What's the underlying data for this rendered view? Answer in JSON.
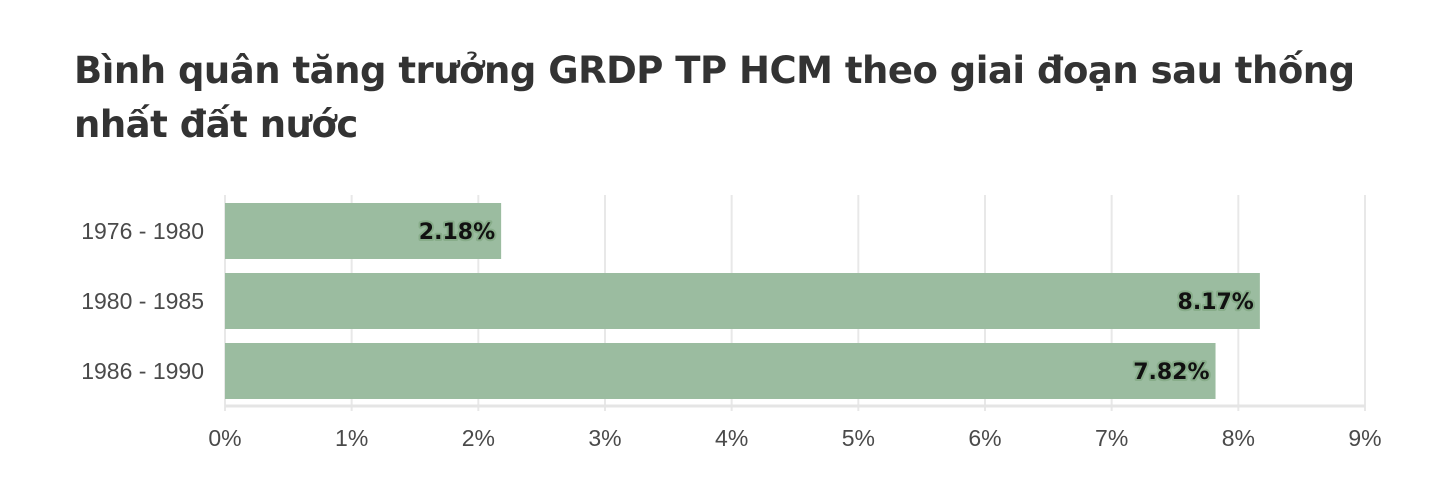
{
  "title": "Bình quân tăng trưởng GRDP TP HCM theo giai đoạn sau thống nhất đất nước",
  "colors": {
    "bar": "#9bbca0",
    "grid": "#e8e8e8",
    "axis": "#e5e5e5",
    "title": "#333333",
    "label": "#4a4a4a"
  },
  "chart_data": {
    "type": "bar",
    "orientation": "horizontal",
    "title": "Bình quân tăng trưởng GRDP TP HCM theo giai đoạn sau thống nhất đất nước",
    "categories": [
      "1976 - 1980",
      "1980 - 1985",
      "1986 - 1990"
    ],
    "values": [
      2.18,
      8.17,
      7.82
    ],
    "value_labels": [
      "2.18%",
      "8.17%",
      "7.82%"
    ],
    "xlim": [
      0,
      9
    ],
    "xticks": [
      0,
      1,
      2,
      3,
      4,
      5,
      6,
      7,
      8,
      9
    ],
    "xtick_labels": [
      "0%",
      "1%",
      "2%",
      "3%",
      "4%",
      "5%",
      "6%",
      "7%",
      "8%",
      "9%"
    ],
    "grid": true,
    "legend": "none"
  }
}
